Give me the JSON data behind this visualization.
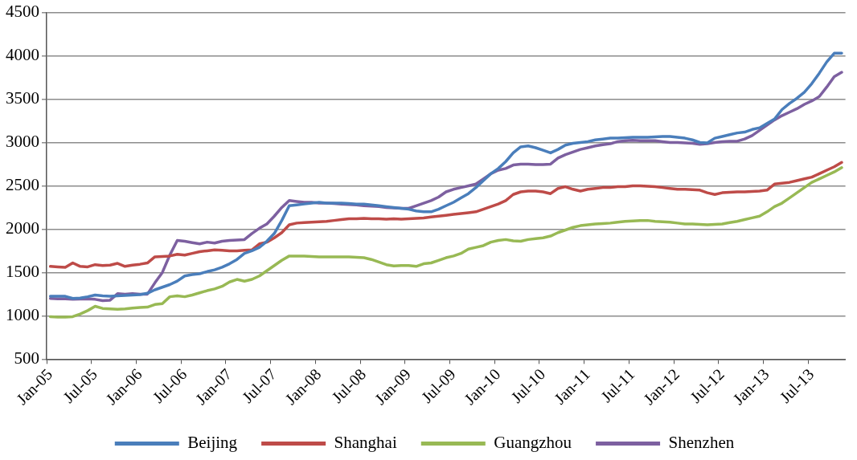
{
  "chart_data": {
    "type": "line",
    "categories": [
      "Jan-05",
      null,
      null,
      null,
      null,
      null,
      "Jul-05",
      null,
      null,
      null,
      null,
      null,
      "Jan-06",
      null,
      null,
      null,
      null,
      null,
      "Jul-06",
      null,
      null,
      null,
      null,
      null,
      "Jan-07",
      null,
      null,
      null,
      null,
      null,
      "Jul-07",
      null,
      null,
      null,
      null,
      null,
      "Jan-08",
      null,
      null,
      null,
      null,
      null,
      "Jul-08",
      null,
      null,
      null,
      null,
      null,
      "Jan-09",
      null,
      null,
      null,
      null,
      null,
      "Jul-09",
      null,
      null,
      null,
      null,
      null,
      "Jan-10",
      null,
      null,
      null,
      null,
      null,
      "Jul-10",
      null,
      null,
      null,
      null,
      null,
      "Jan-11",
      null,
      null,
      null,
      null,
      null,
      "Jul-11",
      null,
      null,
      null,
      null,
      null,
      "Jan-12",
      null,
      null,
      null,
      null,
      null,
      "Jul-12",
      null,
      null,
      null,
      null,
      null,
      "Jan-13",
      null,
      null,
      null,
      null,
      null,
      "Jul-13",
      null,
      null,
      null,
      null
    ],
    "series": [
      {
        "name": "Beijing",
        "color": "#4a7ebb",
        "values": [
          1225,
          1225,
          1225,
          1200,
          1205,
          1220,
          1240,
          1230,
          1225,
          1230,
          1235,
          1240,
          1245,
          1260,
          1300,
          1330,
          1360,
          1400,
          1460,
          1475,
          1485,
          1510,
          1530,
          1560,
          1600,
          1650,
          1720,
          1750,
          1790,
          1860,
          1950,
          2100,
          2270,
          2280,
          2290,
          2300,
          2310,
          2300,
          2300,
          2300,
          2295,
          2290,
          2290,
          2280,
          2270,
          2260,
          2250,
          2240,
          2230,
          2210,
          2200,
          2200,
          2230,
          2270,
          2310,
          2360,
          2410,
          2480,
          2560,
          2640,
          2700,
          2780,
          2880,
          2950,
          2960,
          2940,
          2910,
          2880,
          2920,
          2970,
          2990,
          3000,
          3010,
          3030,
          3040,
          3050,
          3050,
          3055,
          3060,
          3060,
          3060,
          3065,
          3070,
          3070,
          3060,
          3050,
          3030,
          3000,
          2995,
          3050,
          3070,
          3090,
          3110,
          3120,
          3150,
          3170,
          3220,
          3270,
          3380,
          3450,
          3510,
          3580,
          3680,
          3800,
          3930,
          4030,
          4030
        ]
      },
      {
        "name": "Shanghai",
        "color": "#be4b48",
        "values": [
          1570,
          1565,
          1560,
          1610,
          1570,
          1565,
          1590,
          1580,
          1585,
          1605,
          1570,
          1585,
          1595,
          1610,
          1680,
          1685,
          1690,
          1710,
          1700,
          1720,
          1740,
          1750,
          1760,
          1755,
          1750,
          1750,
          1755,
          1760,
          1830,
          1850,
          1900,
          1960,
          2050,
          2070,
          2075,
          2080,
          2085,
          2090,
          2100,
          2110,
          2120,
          2120,
          2125,
          2120,
          2120,
          2115,
          2120,
          2115,
          2120,
          2125,
          2130,
          2140,
          2150,
          2160,
          2170,
          2180,
          2190,
          2200,
          2230,
          2260,
          2290,
          2330,
          2400,
          2430,
          2440,
          2440,
          2430,
          2410,
          2470,
          2490,
          2460,
          2440,
          2460,
          2470,
          2480,
          2480,
          2490,
          2490,
          2500,
          2500,
          2495,
          2490,
          2480,
          2470,
          2460,
          2460,
          2455,
          2450,
          2420,
          2400,
          2420,
          2425,
          2430,
          2430,
          2435,
          2440,
          2450,
          2520,
          2530,
          2540,
          2560,
          2580,
          2600,
          2640,
          2680,
          2720,
          2770
        ]
      },
      {
        "name": "Guangzhou",
        "color": "#98b954",
        "values": [
          990,
          985,
          985,
          990,
          1020,
          1060,
          1110,
          1085,
          1080,
          1075,
          1080,
          1090,
          1095,
          1100,
          1130,
          1140,
          1220,
          1230,
          1220,
          1240,
          1265,
          1290,
          1310,
          1340,
          1390,
          1420,
          1400,
          1420,
          1460,
          1520,
          1580,
          1640,
          1690,
          1690,
          1690,
          1685,
          1680,
          1680,
          1680,
          1680,
          1680,
          1675,
          1670,
          1650,
          1620,
          1590,
          1575,
          1580,
          1580,
          1570,
          1600,
          1610,
          1640,
          1670,
          1690,
          1720,
          1770,
          1790,
          1810,
          1850,
          1870,
          1880,
          1865,
          1860,
          1880,
          1890,
          1900,
          1920,
          1960,
          1990,
          2020,
          2040,
          2050,
          2060,
          2065,
          2070,
          2080,
          2090,
          2095,
          2100,
          2100,
          2090,
          2085,
          2080,
          2070,
          2060,
          2060,
          2055,
          2050,
          2055,
          2060,
          2075,
          2090,
          2110,
          2130,
          2150,
          2200,
          2260,
          2300,
          2360,
          2420,
          2480,
          2540,
          2580,
          2620,
          2660,
          2710
        ]
      },
      {
        "name": "Shenzhen",
        "color": "#7d60a0",
        "values": [
          1200,
          1195,
          1195,
          1190,
          1193,
          1195,
          1190,
          1175,
          1180,
          1255,
          1250,
          1255,
          1250,
          1250,
          1380,
          1500,
          1700,
          1870,
          1860,
          1845,
          1830,
          1850,
          1840,
          1860,
          1870,
          1875,
          1880,
          1950,
          2010,
          2060,
          2150,
          2250,
          2330,
          2320,
          2310,
          2310,
          2300,
          2300,
          2295,
          2290,
          2285,
          2280,
          2270,
          2265,
          2260,
          2250,
          2245,
          2240,
          2240,
          2270,
          2300,
          2330,
          2370,
          2430,
          2460,
          2480,
          2500,
          2520,
          2580,
          2640,
          2680,
          2700,
          2740,
          2750,
          2750,
          2745,
          2745,
          2750,
          2820,
          2860,
          2890,
          2920,
          2940,
          2960,
          2975,
          2985,
          3010,
          3020,
          3025,
          3020,
          3020,
          3020,
          3010,
          3000,
          3000,
          2995,
          2990,
          2980,
          2985,
          3000,
          3010,
          3015,
          3015,
          3040,
          3080,
          3140,
          3200,
          3260,
          3310,
          3350,
          3390,
          3440,
          3480,
          3530,
          3640,
          3760,
          3810
        ]
      }
    ],
    "ylim": [
      500,
      4500
    ],
    "yticks": [
      500,
      1000,
      1500,
      2000,
      2500,
      3000,
      3500,
      4000,
      4500
    ],
    "grid": "y",
    "legend": "bottom",
    "marker": "none",
    "line_style": "solid"
  }
}
